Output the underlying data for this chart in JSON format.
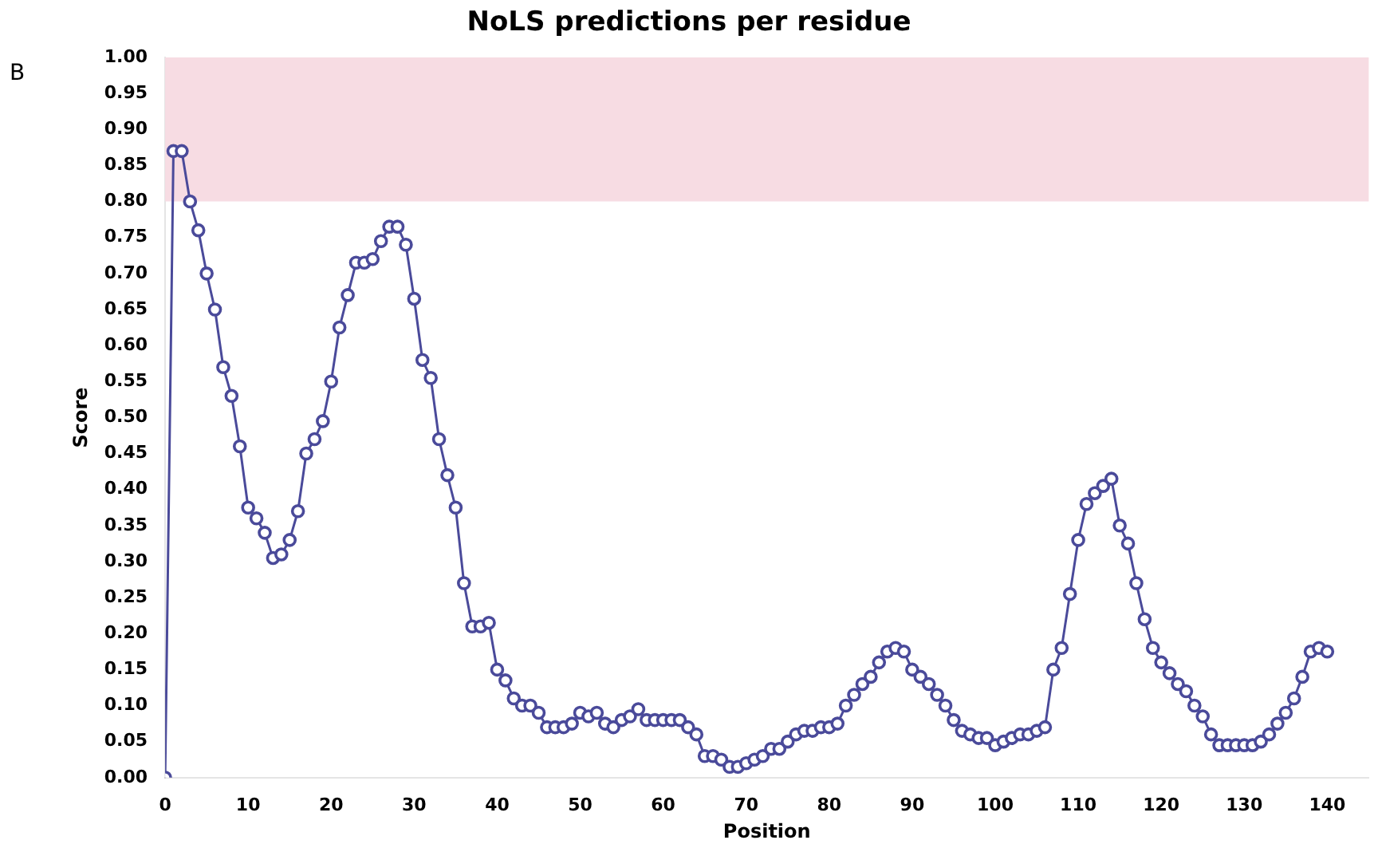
{
  "chart_data": {
    "type": "line",
    "title": "NoLS predictions per residue",
    "xlabel": "Position",
    "ylabel": "Score",
    "annotations": [
      "B"
    ],
    "x": [
      0,
      1,
      2,
      3,
      4,
      5,
      6,
      7,
      8,
      9,
      10,
      11,
      12,
      13,
      14,
      15,
      16,
      17,
      18,
      19,
      20,
      21,
      22,
      23,
      24,
      25,
      26,
      27,
      28,
      29,
      30,
      31,
      32,
      33,
      34,
      35,
      36,
      37,
      38,
      39,
      40,
      41,
      42,
      43,
      44,
      45,
      46,
      47,
      48,
      49,
      50,
      51,
      52,
      53,
      54,
      55,
      56,
      57,
      58,
      59,
      60,
      61,
      62,
      63,
      64,
      65,
      66,
      67,
      68,
      69,
      70,
      71,
      72,
      73,
      74,
      75,
      76,
      77,
      78,
      79,
      80,
      81,
      82,
      83,
      84,
      85,
      86,
      87,
      88,
      89,
      90,
      91,
      92,
      93,
      94,
      95,
      96,
      97,
      98,
      99,
      100,
      101,
      102,
      103,
      104,
      105,
      106,
      107,
      108,
      109,
      110,
      111,
      112,
      113,
      114,
      115,
      116,
      117,
      118,
      119,
      120,
      121,
      122,
      123,
      124,
      125,
      126,
      127,
      128,
      129,
      130,
      131,
      132,
      133,
      134,
      135,
      136,
      137,
      138,
      139,
      140
    ],
    "series": [
      {
        "color": "#4a4a9a",
        "values": [
          0.0,
          0.87,
          0.87,
          0.8,
          0.76,
          0.7,
          0.65,
          0.57,
          0.53,
          0.46,
          0.375,
          0.36,
          0.34,
          0.305,
          0.31,
          0.33,
          0.37,
          0.45,
          0.47,
          0.495,
          0.55,
          0.625,
          0.67,
          0.715,
          0.715,
          0.72,
          0.745,
          0.765,
          0.765,
          0.74,
          0.665,
          0.58,
          0.555,
          0.47,
          0.42,
          0.375,
          0.27,
          0.21,
          0.21,
          0.215,
          0.15,
          0.135,
          0.11,
          0.1,
          0.1,
          0.09,
          0.07,
          0.07,
          0.07,
          0.075,
          0.09,
          0.085,
          0.09,
          0.075,
          0.07,
          0.08,
          0.085,
          0.095,
          0.08,
          0.08,
          0.08,
          0.08,
          0.08,
          0.07,
          0.06,
          0.03,
          0.03,
          0.025,
          0.015,
          0.015,
          0.02,
          0.025,
          0.03,
          0.04,
          0.04,
          0.05,
          0.06,
          0.065,
          0.065,
          0.07,
          0.07,
          0.075,
          0.1,
          0.115,
          0.13,
          0.14,
          0.16,
          0.175,
          0.18,
          0.175,
          0.15,
          0.14,
          0.13,
          0.115,
          0.1,
          0.08,
          0.065,
          0.06,
          0.055,
          0.055,
          0.045,
          0.05,
          0.055,
          0.06,
          0.06,
          0.065,
          0.07,
          0.15,
          0.18,
          0.255,
          0.33,
          0.38,
          0.395,
          0.405,
          0.415,
          0.35,
          0.325,
          0.27,
          0.22,
          0.18,
          0.16,
          0.145,
          0.13,
          0.12,
          0.1,
          0.085,
          0.06,
          0.045,
          0.045,
          0.045,
          0.045,
          0.045,
          0.05,
          0.06,
          0.075,
          0.09,
          0.11,
          0.14,
          0.175,
          0.18,
          0.175
        ]
      }
    ],
    "marker": "circle",
    "xlim": [
      0,
      145
    ],
    "xticks": [
      0,
      10,
      20,
      30,
      40,
      50,
      60,
      70,
      80,
      90,
      100,
      110,
      120,
      130,
      140
    ],
    "ylim": [
      0,
      1
    ],
    "yticks": [
      {
        "value": 0,
        "label": "0.00"
      },
      {
        "value": 0.05,
        "label": "0.05"
      },
      {
        "value": 0.1,
        "label": "0.10"
      },
      {
        "value": 0.15,
        "label": "0.15"
      },
      {
        "value": 0.2,
        "label": "0.20"
      },
      {
        "value": 0.25,
        "label": "0.25"
      },
      {
        "value": 0.3,
        "label": "0.30"
      },
      {
        "value": 0.35,
        "label": "0.35"
      },
      {
        "value": 0.4,
        "label": "0.40"
      },
      {
        "value": 0.45,
        "label": "0.45"
      },
      {
        "value": 0.5,
        "label": "0.50"
      },
      {
        "value": 0.55,
        "label": "0.55"
      },
      {
        "value": 0.6,
        "label": "0.60"
      },
      {
        "value": 0.65,
        "label": "0.65"
      },
      {
        "value": 0.7,
        "label": "0.70"
      },
      {
        "value": 0.75,
        "label": "0.75"
      },
      {
        "value": 0.8,
        "label": "0.80"
      },
      {
        "value": 0.85,
        "label": "0.85"
      },
      {
        "value": 0.9,
        "label": "0.90"
      },
      {
        "value": 0.95,
        "label": "0.95"
      },
      {
        "value": 1,
        "label": "1.00"
      }
    ],
    "bands": [
      {
        "axis": "y",
        "from": 0.8,
        "to": 1,
        "color": "#f7dce3"
      }
    ],
    "grid": false,
    "legend": false
  }
}
